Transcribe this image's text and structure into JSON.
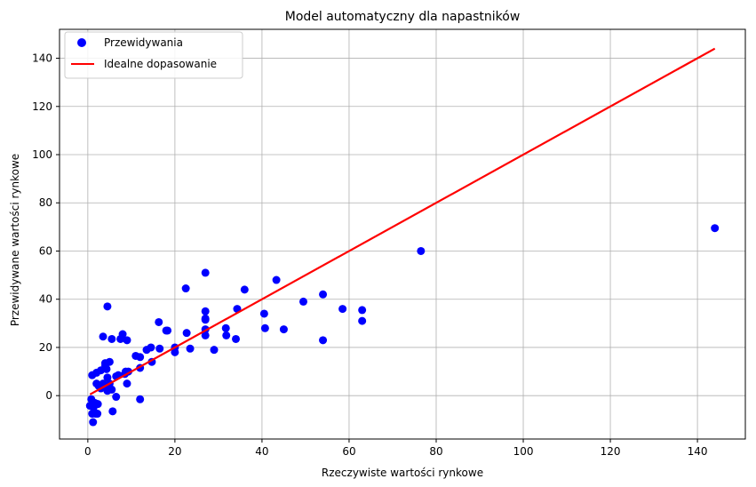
{
  "chart_data": {
    "type": "scatter",
    "title": "Model automatyczny dla napastników",
    "xlabel": "Rzeczywiste wartości rynkowe",
    "ylabel": "Przewidywane wartości rynkowe",
    "xlim": [
      -6.5,
      151
    ],
    "ylim": [
      -18,
      152
    ],
    "xticks": [
      0,
      20,
      40,
      60,
      80,
      100,
      120,
      140
    ],
    "yticks": [
      0,
      20,
      40,
      60,
      80,
      100,
      120,
      140
    ],
    "grid": true,
    "legend_position": "top-left",
    "series": [
      {
        "name": "Przewidywania",
        "kind": "scatter",
        "color": "#0000ff",
        "points": [
          [
            0.5,
            -4.2
          ],
          [
            0.8,
            -1.5
          ],
          [
            1.0,
            -7.5
          ],
          [
            1.0,
            8.5
          ],
          [
            1.2,
            -11.0
          ],
          [
            1.3,
            -5.0
          ],
          [
            1.6,
            -3.0
          ],
          [
            1.8,
            -7.5
          ],
          [
            2.0,
            9.5
          ],
          [
            2.0,
            5.0
          ],
          [
            2.2,
            -7.5
          ],
          [
            2.3,
            -3.5
          ],
          [
            2.5,
            4.0
          ],
          [
            3.0,
            3.0
          ],
          [
            3.0,
            10.5
          ],
          [
            3.5,
            5.0
          ],
          [
            3.5,
            24.5
          ],
          [
            4.0,
            12.5
          ],
          [
            4.0,
            13.5
          ],
          [
            4.3,
            11.0
          ],
          [
            4.5,
            37.0
          ],
          [
            4.5,
            7.5
          ],
          [
            4.5,
            2.0
          ],
          [
            4.8,
            3.0
          ],
          [
            5.0,
            14.0
          ],
          [
            5.0,
            5.0
          ],
          [
            5.5,
            23.5
          ],
          [
            5.5,
            2.5
          ],
          [
            5.7,
            -6.5
          ],
          [
            6.5,
            8.0
          ],
          [
            6.5,
            -0.5
          ],
          [
            7.0,
            8.5
          ],
          [
            7.5,
            23.5
          ],
          [
            8.0,
            25.5
          ],
          [
            8.5,
            9.0
          ],
          [
            8.7,
            10.0
          ],
          [
            9.0,
            23.0
          ],
          [
            9.0,
            5.0
          ],
          [
            9.3,
            10.0
          ],
          [
            11.0,
            16.5
          ],
          [
            12.0,
            16.0
          ],
          [
            12.0,
            11.5
          ],
          [
            12.0,
            -1.5
          ],
          [
            13.5,
            19.0
          ],
          [
            14.5,
            20.0
          ],
          [
            14.7,
            14.0
          ],
          [
            16.3,
            30.5
          ],
          [
            16.5,
            19.5
          ],
          [
            18.0,
            27.0
          ],
          [
            18.3,
            27.0
          ],
          [
            20.0,
            20.0
          ],
          [
            20.0,
            18.0
          ],
          [
            22.5,
            44.5
          ],
          [
            22.7,
            26.0
          ],
          [
            23.5,
            19.5
          ],
          [
            27.0,
            51.0
          ],
          [
            27.0,
            35.0
          ],
          [
            27.0,
            32.0
          ],
          [
            27.0,
            31.5
          ],
          [
            27.0,
            27.5
          ],
          [
            27.0,
            25.0
          ],
          [
            29.0,
            19.0
          ],
          [
            31.7,
            28.0
          ],
          [
            31.8,
            25.0
          ],
          [
            34.0,
            23.5
          ],
          [
            34.3,
            36.0
          ],
          [
            36.0,
            44.0
          ],
          [
            40.5,
            34.0
          ],
          [
            40.7,
            28.0
          ],
          [
            43.3,
            48.0
          ],
          [
            45.0,
            27.5
          ],
          [
            49.5,
            39.0
          ],
          [
            54.0,
            42.0
          ],
          [
            54.0,
            23.0
          ],
          [
            58.5,
            36.0
          ],
          [
            63.0,
            35.5
          ],
          [
            63.0,
            31.0
          ],
          [
            76.5,
            60.0
          ],
          [
            144.0,
            69.5
          ]
        ]
      },
      {
        "name": "Idealne dopasowanie",
        "kind": "line",
        "color": "#ff0000",
        "points": [
          [
            0.5,
            0.5
          ],
          [
            144.0,
            144.0
          ]
        ]
      }
    ]
  }
}
